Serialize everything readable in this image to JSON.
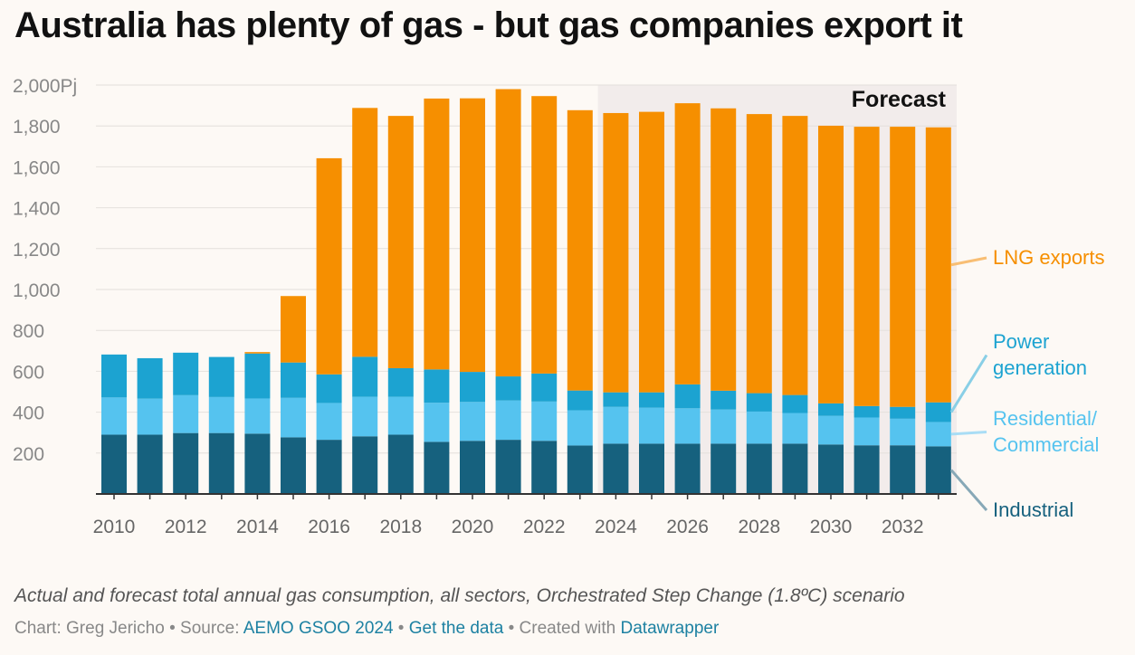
{
  "title": "Australia has plenty of gas - but gas companies export it",
  "caption": "Actual and forecast total annual gas consumption, all sectors, Orchestrated Step Change (1.8ºC) scenario",
  "footer": {
    "chart_label": "Chart: Greg Jericho",
    "separator": " • ",
    "source_label": "Source: ",
    "source_link": "AEMO GSOO 2024",
    "data_link": "Get the data",
    "created_label": "Created with ",
    "created_link": "Datawrapper"
  },
  "colors": {
    "industrial": "#16617e",
    "residential": "#55c3ef",
    "power": "#1ca3d1",
    "lng": "#f68f00",
    "forecast_band": "#f2eceb",
    "axis": "#333333",
    "tick_text": "#888888"
  },
  "chart_data": {
    "type": "bar",
    "stacked": true,
    "title": "Australia has plenty of gas - but gas companies export it",
    "xlabel": "",
    "ylabel": "",
    "ylim": [
      0,
      2000
    ],
    "y_ticks": [
      200,
      400,
      600,
      800,
      1000,
      1200,
      1400,
      1600,
      1800,
      2000
    ],
    "y_tick_labels": [
      "200",
      "400",
      "600",
      "800",
      "1,000",
      "1,200",
      "1,400",
      "1,600",
      "1,800",
      "2,000Pj"
    ],
    "grid": true,
    "categories": [
      "2010",
      "2011",
      "2012",
      "2013",
      "2014",
      "2015",
      "2016",
      "2017",
      "2018",
      "2019",
      "2020",
      "2021",
      "2022",
      "2023",
      "2024",
      "2025",
      "2026",
      "2027",
      "2028",
      "2029",
      "2030",
      "2031",
      "2032",
      "2033"
    ],
    "x_tick_labels": [
      "2010",
      "2012",
      "2014",
      "2016",
      "2018",
      "2020",
      "2022",
      "2024",
      "2026",
      "2028",
      "2030",
      "2032"
    ],
    "forecast_label": "Forecast",
    "forecast_start": "2024",
    "series": [
      {
        "name": "Industrial",
        "label_lines": [
          "Industrial"
        ],
        "color_key": "industrial",
        "values": [
          290,
          290,
          298,
          298,
          295,
          277,
          265,
          282,
          290,
          255,
          260,
          265,
          260,
          237,
          246,
          246,
          246,
          246,
          246,
          246,
          242,
          238,
          238,
          233
        ]
      },
      {
        "name": "Residential/ Commercial",
        "label_lines": [
          "Residential/",
          "Commercial"
        ],
        "color_key": "residential",
        "values": [
          182,
          176,
          185,
          176,
          172,
          193,
          180,
          193,
          185,
          191,
          190,
          192,
          192,
          172,
          180,
          176,
          173,
          167,
          157,
          150,
          140,
          136,
          130,
          119
        ]
      },
      {
        "name": "Power generation",
        "label_lines": [
          "Power",
          "generation"
        ],
        "color_key": "power",
        "values": [
          210,
          198,
          208,
          196,
          220,
          173,
          140,
          196,
          140,
          163,
          147,
          118,
          137,
          97,
          71,
          75,
          117,
          92,
          90,
          88,
          61,
          56,
          58,
          96
        ]
      },
      {
        "name": "LNG exports",
        "label_lines": [
          "LNG exports"
        ],
        "color_key": "lng",
        "values": [
          0,
          0,
          0,
          0,
          7,
          325,
          1057,
          1217,
          1234,
          1325,
          1338,
          1405,
          1357,
          1371,
          1366,
          1372,
          1375,
          1381,
          1365,
          1365,
          1358,
          1366,
          1370,
          1345
        ]
      }
    ]
  }
}
